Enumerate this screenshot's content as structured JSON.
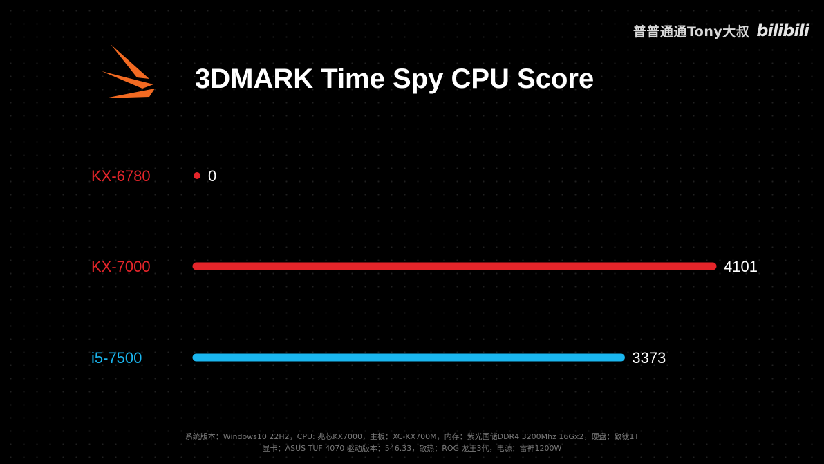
{
  "watermark": {
    "text": "普普通通Tony大叔",
    "logo": "bilibili"
  },
  "logo_icon": "3dmark-logo-icon",
  "colors": {
    "kx_red": "#e5252a",
    "intel_blue": "#1ab6ef",
    "logo_orange": "#f26a22",
    "background": "#000000"
  },
  "chart_data": {
    "type": "bar",
    "orientation": "horizontal",
    "title": "3DMARK Time Spy CPU Score",
    "categories": [
      "KX-6780",
      "KX-7000",
      "i5-7500"
    ],
    "values": [
      0,
      4101,
      3373
    ],
    "value_labels": [
      "0",
      "4101",
      "3373"
    ],
    "bar_colors": [
      "#e5252a",
      "#e5252a",
      "#1ab6ef"
    ],
    "xlim": [
      0,
      4101
    ],
    "grid": false,
    "legend": "none"
  },
  "footer": {
    "line1": "系统版本：Windows10 22H2，CPU: 兆芯KX7000，主板：XC-KX700M，内存：紫光国储DDR4 3200Mhz 16Gx2，硬盘：致钛1T",
    "line2": "显卡：ASUS TUF 4070 驱动版本：546.33，散热：ROG 龙王3代，电源：雷神1200W"
  }
}
